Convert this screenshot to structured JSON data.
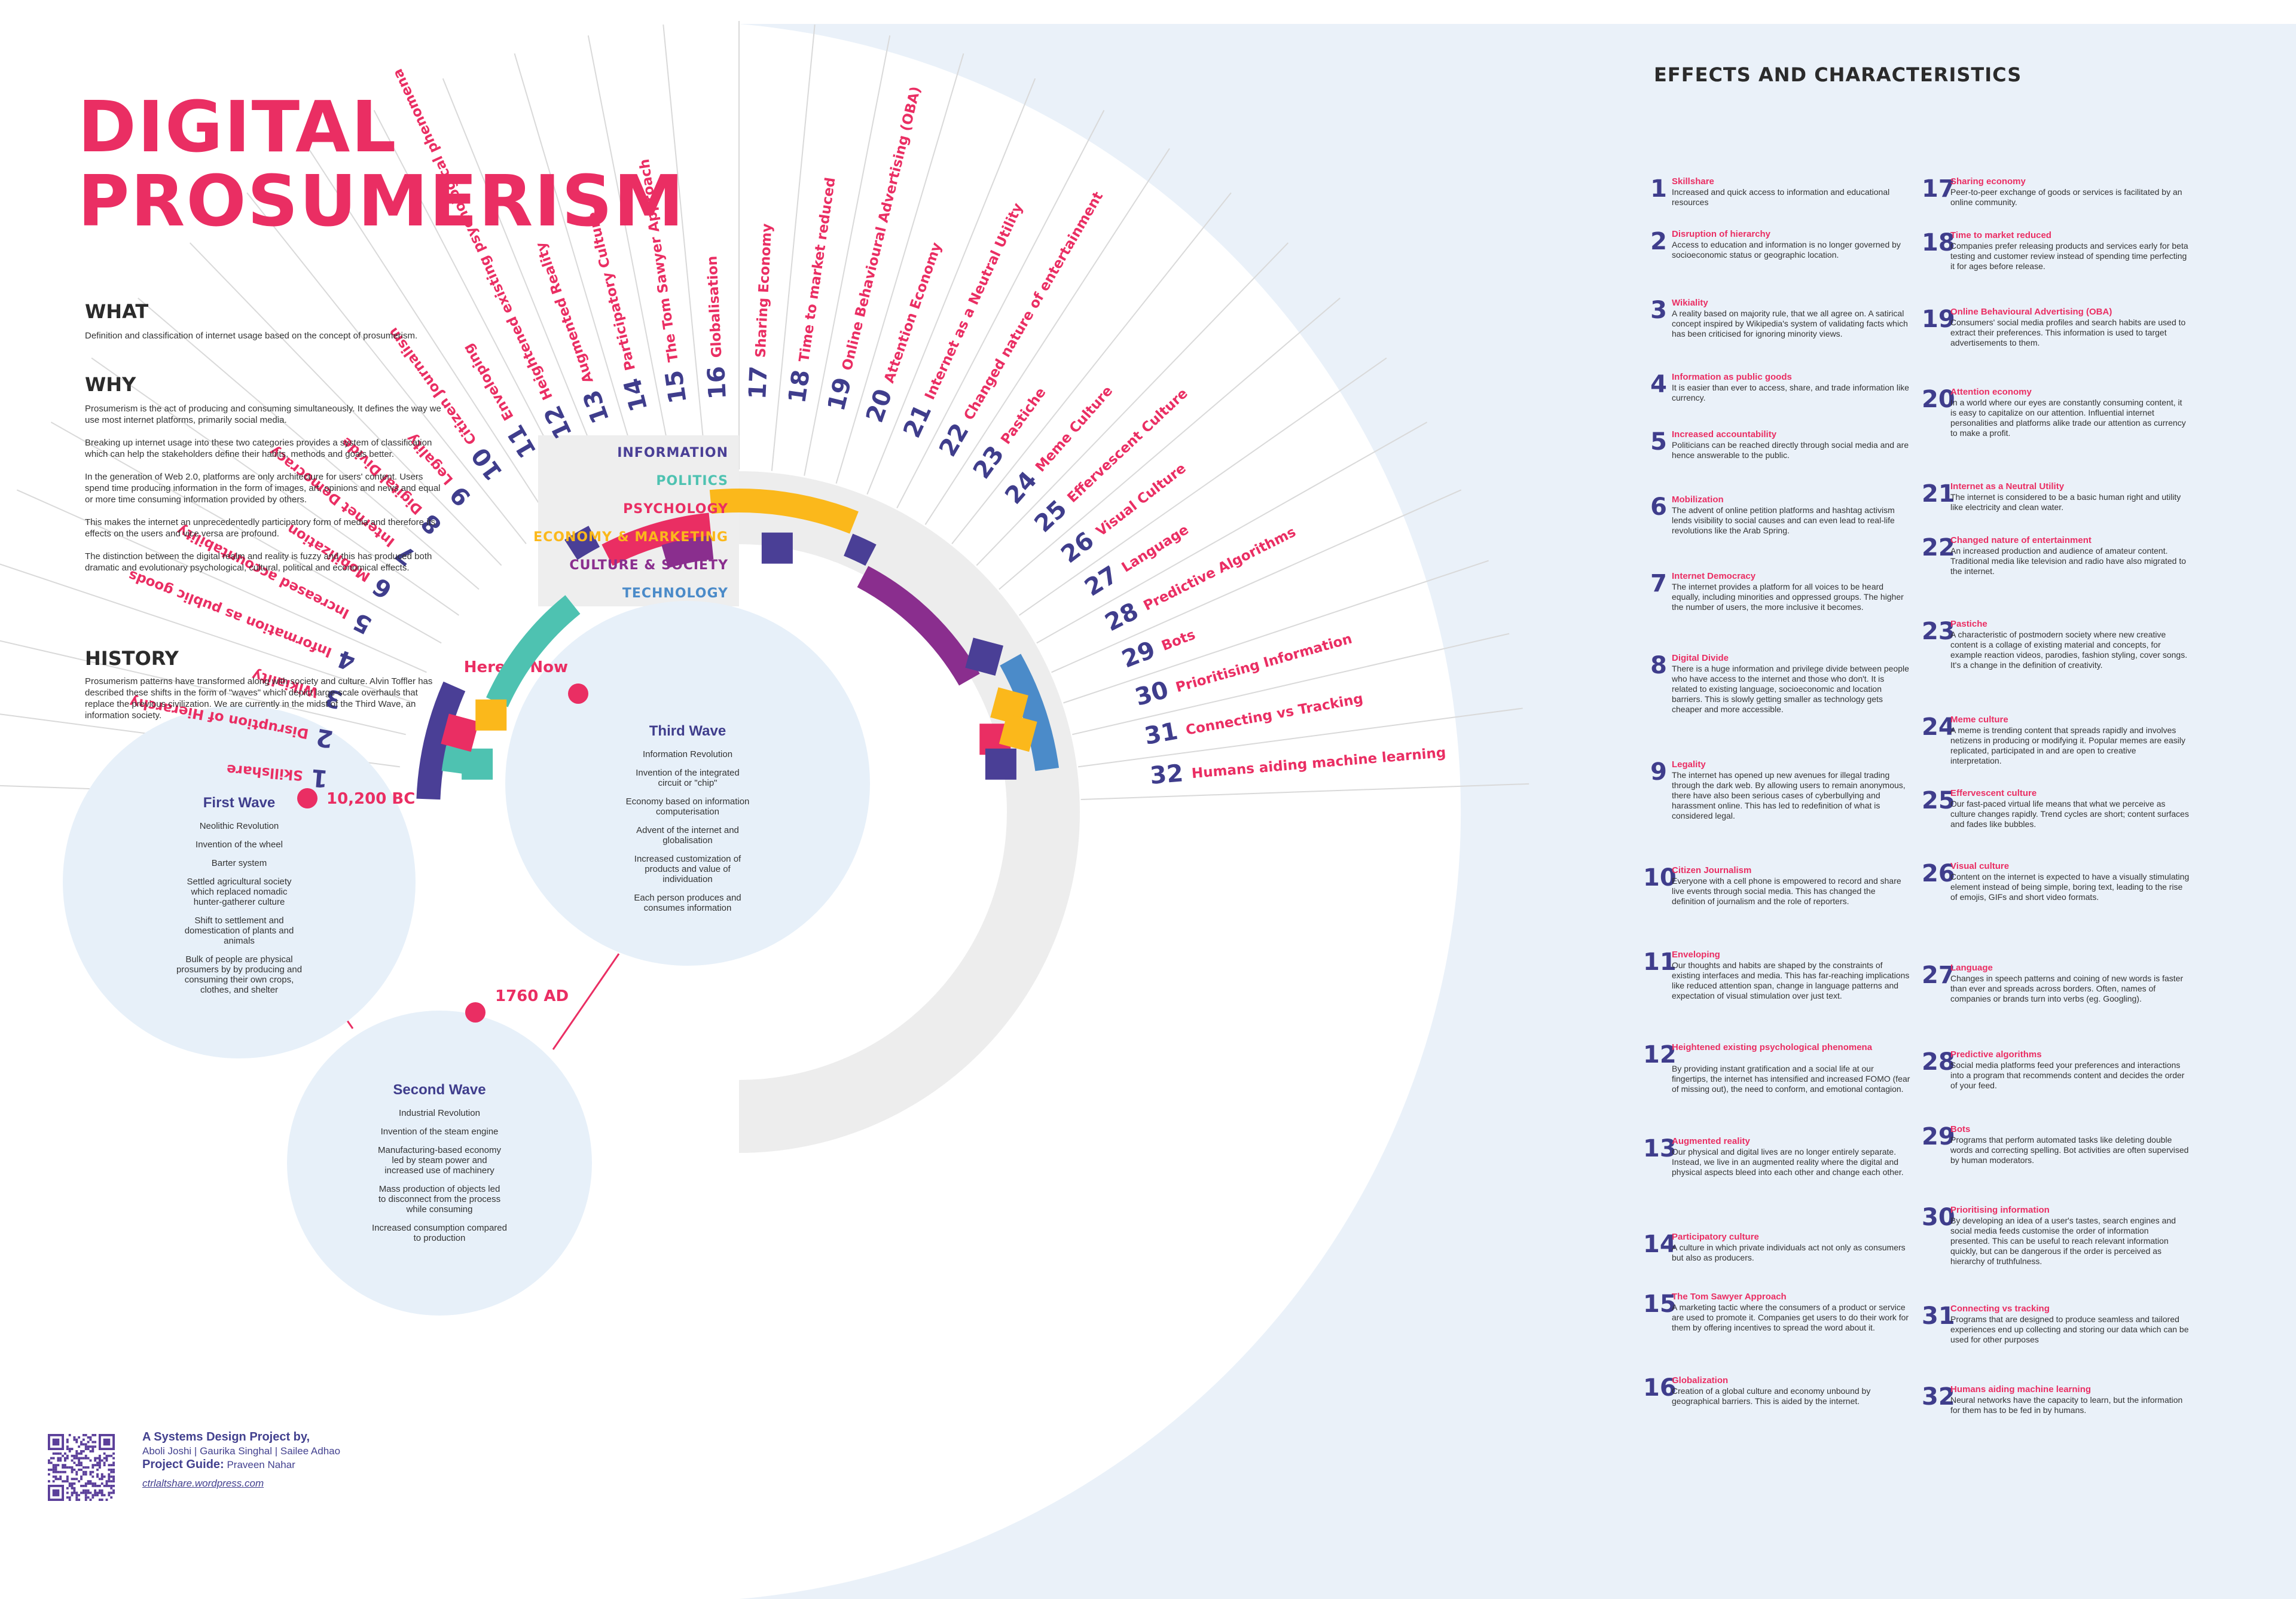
{
  "title": {
    "line1": "DIGITAL",
    "line2": "PROSUMERISM"
  },
  "what": {
    "heading": "WHAT",
    "text": "Definition and classification of internet usage based on the concept of prosumerism."
  },
  "why": {
    "heading": "WHY",
    "paragraphs": [
      "Prosumerism is the act of producing and consuming simultaneously. It defines the way we use most internet platforms, primarily social media.",
      "Breaking up internet usage into these two categories provides a system of classification which can help the stakeholders define their habits, methods and goals better.",
      "In the generation of Web 2.0, platforms are only architecture for users' content. Users spend time producing information in the form of images, art, opinions and news and equal or more time  consuming information provided by others.",
      "This makes the internet an unprecedentedly participatory form of media and therefore its effects on the users and vice versa are profound.",
      "The distinction between the digital realm and reality is fuzzy and this has produced both dramatic and evolutionary psychological, cultural, political and economical effects."
    ]
  },
  "history": {
    "heading": "HISTORY",
    "text": "Prosumerism patterns have transformed along with society and culture. Alvin Toffler has described these shifts in the form of \"waves\" which depict large-scale overhauls that replace the previous civilization. We are currently in the midst of the Third Wave, an information society."
  },
  "legend": [
    {
      "label": "INFORMATION",
      "color": "#4a3f96"
    },
    {
      "label": "POLITICS",
      "color": "#4ec2b1"
    },
    {
      "label": "PSYCHOLOGY",
      "color": "#ea2e63"
    },
    {
      "label": "ECONOMY & MARKETING",
      "color": "#fbb81b"
    },
    {
      "label": "CULTURE & SOCIETY",
      "color": "#8a2e8e"
    },
    {
      "label": "TECHNOLOGY",
      "color": "#4b8bc9"
    }
  ],
  "waves": [
    {
      "name": "First Wave",
      "date": "10,200 BC",
      "items": [
        "Neolithic Revolution",
        "Invention of the wheel",
        "Barter system",
        "Settled agricultural society which replaced nomadic hunter-gatherer culture",
        "Shift to settlement and domestication of plants and animals",
        "Bulk of people are physical prosumers by by producing and consuming their own crops, clothes, and shelter"
      ]
    },
    {
      "name": "Second Wave",
      "date": "1760 AD",
      "items": [
        "Industrial Revolution",
        "Invention of the steam engine",
        "Manufacturing-based economy led by steam power and increased use of machinery",
        "Mass production of objects led to disconnect from the process while consuming",
        "Increased consumption compared to production"
      ]
    },
    {
      "name": "Third Wave",
      "date": "Here & Now",
      "items": [
        "Information Revolution",
        "Invention of the integrated circuit or \"chip\"",
        "Economy based on information computerisation",
        "Advent of the internet and globalisation",
        "Increased customization of products and value of individuation",
        "Each person produces and consumes information"
      ]
    }
  ],
  "effects_heading": "EFFECTS AND CHARACTERISTICS",
  "effects": [
    {
      "num": "1",
      "name": "Skillshare",
      "wheel": "Skillshare",
      "desc": "Increased and quick access to information and educational resources"
    },
    {
      "num": "2",
      "name": "Disruption of hierarchy",
      "wheel": "Disruption of Hierarchy",
      "desc": "Access to education and information is no longer governed by socioeconomic status or geographic location."
    },
    {
      "num": "3",
      "name": "Wikiality",
      "wheel": "Wikiality",
      "desc": "A reality based on majority rule, that we all agree on. A satirical concept inspired by Wikipedia's system of validating facts which has been criticised for ignoring minority views."
    },
    {
      "num": "4",
      "name": "Information as public goods",
      "wheel": "Information as public goods",
      "desc": "It is easier than ever to access, share, and trade information like currency."
    },
    {
      "num": "5",
      "name": "Increased accountability",
      "wheel": "Increased accountability",
      "desc": "Politicians can be reached directly through social media and are hence answerable to the public."
    },
    {
      "num": "6",
      "name": "Mobilization",
      "wheel": "Mobilization",
      "desc": "The advent of online petition platforms and hashtag activism lends visibility to social causes and can even lead to real-life revolutions like the Arab Spring."
    },
    {
      "num": "7",
      "name": "Internet Democracy",
      "wheel": "Internet Democracy",
      "desc": "The internet provides a platform for all voices to be heard equally, including minorities and oppressed groups. The higher the number of users, the more inclusive it becomes."
    },
    {
      "num": "8",
      "name": "Digital Divide",
      "wheel": "Digital Divide",
      "desc": "There is a huge information and privilege divide between people who have access to the internet and those who don't. It is related to existing language, socioeconomic and location barriers. This is slowly getting smaller as technology gets cheaper and more accessible."
    },
    {
      "num": "9",
      "name": "Legality",
      "wheel": "Legality",
      "desc": "The internet has opened up new avenues for illegal trading through the dark web. By allowing users to remain anonymous, there have also been serious cases of cyberbullying and harassment online. This has led to redefinition of what is considered legal."
    },
    {
      "num": "10",
      "name": "Citizen Journalism",
      "wheel": "Citizen Journalism",
      "desc": "Everyone with a cell phone is empowered to record and share live events through social media. This has changed the definition of journalism and the role of reporters."
    },
    {
      "num": "11",
      "name": "Enveloping",
      "wheel": "Enveloping",
      "desc": "Our thoughts and habits are shaped by the constraints of existing interfaces and media. This has far-reaching implications like reduced attention span, change in language patterns and expectation of visual stimulation over just text."
    },
    {
      "num": "12",
      "name": "Heightened existing psychological phenomena",
      "wheel": "Heightened existing psychological phenomena",
      "desc": "By providing instant gratification and a social life at our fingertips, the internet has intensified and increased FOMO (fear of missing out), the need to conform, and emotional contagion."
    },
    {
      "num": "13",
      "name": "Augmented reality",
      "wheel": "Augmented Reality",
      "desc": "Our physical and digital lives are no longer entirely separate. Instead, we live in an augmented reality where the digital and physical aspects bleed into each other and change each other."
    },
    {
      "num": "14",
      "name": "Participatory culture",
      "wheel": "Participatory Culture",
      "desc": "A culture in which private individuals act not only as consumers but also as producers."
    },
    {
      "num": "15",
      "name": "The Tom Sawyer Approach",
      "wheel": "The Tom Sawyer Approach",
      "desc": "A marketing tactic where the consumers of a product or service are used to promote it. Companies get users to do their work for them by offering incentives to spread the word about it."
    },
    {
      "num": "16",
      "name": "Globalization",
      "wheel": "Globalisation",
      "desc": "Creation of a global culture and economy unbound by geographical barriers. This is aided by the internet."
    },
    {
      "num": "17",
      "name": "Sharing economy",
      "wheel": "Sharing Economy",
      "desc": "Peer-to-peer exchange of goods or services is facilitated by an online community."
    },
    {
      "num": "18",
      "name": "Time to market reduced",
      "wheel": "Time to market reduced",
      "desc": "Companies prefer releasing products and services early for beta testing and customer review instead of spending time perfecting it for ages before release."
    },
    {
      "num": "19",
      "name": "Online Behavioural Advertising (OBA)",
      "wheel": "Online Behavioural Advertising (OBA)",
      "desc": "Consumers' social media profiles and search habits are used to extract their preferences. This information is used to target advertisements to them."
    },
    {
      "num": "20",
      "name": "Attention economy",
      "wheel": "Attention Economy",
      "desc": "In a world where our eyes are constantly consuming content, it is easy to capitalize on our attention. Influential internet personalities and platforms alike trade our attention as currency to make a profit."
    },
    {
      "num": "21",
      "name": "Internet as a Neutral Utility",
      "wheel": "Internet as a Neutral Utility",
      "desc": "The internet is considered to be a basic human right and utility like electricity and clean water."
    },
    {
      "num": "22",
      "name": "Changed nature of entertainment",
      "wheel": "Changed nature of entertainment",
      "desc": "An increased production and audience of amateur content. Traditional media like television and radio have also migrated to the internet."
    },
    {
      "num": "23",
      "name": "Pastiche",
      "wheel": "Pastiche",
      "desc": "A characteristic of postmodern society where new creative content is a collage of existing material and concepts, for example reaction videos, parodies, fashion styling, cover songs. It's a change in the definition of creativity."
    },
    {
      "num": "24",
      "name": "Meme culture",
      "wheel": "Meme Culture",
      "desc": "A meme is trending content that spreads rapidly and involves netizens in producing or modifying it. Popular memes are easily replicated, participated in and are open to creative interpretation."
    },
    {
      "num": "25",
      "name": "Effervescent culture",
      "wheel": "Effervescent Culture",
      "desc": "Our fast-paced virtual life means that what we perceive as culture changes rapidly. Trend cycles are short; content surfaces and fades like bubbles."
    },
    {
      "num": "26",
      "name": "Visual culture",
      "wheel": "Visual Culture",
      "desc": "Content on the internet is expected to have a visually stimulating element instead of being simple, boring text, leading to the rise of emojis, GIFs and short video formats."
    },
    {
      "num": "27",
      "name": "Language",
      "wheel": "Language",
      "desc": "Changes in speech patterns and coining of new words is faster than ever and spreads across borders. Often, names of companies or brands turn into verbs (eg. Googling)."
    },
    {
      "num": "28",
      "name": "Predictive algorithms",
      "wheel": "Predictive Algorithms",
      "desc": "Social media platforms feed your preferences and interactions into a program that recommends content and decides the order of your feed."
    },
    {
      "num": "29",
      "name": "Bots",
      "wheel": "Bots",
      "desc": "Programs that perform automated tasks like deleting double words and correcting spelling. Bot activities are often supervised by human moderators."
    },
    {
      "num": "30",
      "name": "Prioritising information",
      "wheel": "Prioritising Information",
      "desc": "By developing an idea of a user's tastes, search engines and social media feeds customise the order of information presented. This can be useful to reach relevant information quickly, but can be dangerous if the order is perceived as hierarchy of truthfulness."
    },
    {
      "num": "31",
      "name": "Connecting vs tracking",
      "wheel": "Connecting vs Tracking",
      "desc": "Programs that are designed to produce seamless and tailored experiences end up collecting and storing our data which can be used for other purposes"
    },
    {
      "num": "32",
      "name": "Humans aiding machine learning",
      "wheel": "Humans aiding machine learning",
      "desc": "Neural networks have the capacity to learn, but the information for them has to be fed in by humans."
    }
  ],
  "arcs": [
    {
      "category": "INFORMATION",
      "from": 1,
      "to": 4
    },
    {
      "category": "POLITICS",
      "from": 2,
      "to": 2
    },
    {
      "category": "POLITICS",
      "from": 5,
      "to": 9
    },
    {
      "category": "INFORMATION",
      "from": 11,
      "to": 11
    },
    {
      "category": "PSYCHOLOGY",
      "from": 12,
      "to": 15
    },
    {
      "category": "CULTURE & SOCIETY",
      "from": 14,
      "to": 15
    },
    {
      "category": "ECONOMY & MARKETING",
      "from": 16,
      "to": 20
    },
    {
      "category": "INFORMATION",
      "from": 21,
      "to": 21
    },
    {
      "category": "CULTURE & SOCIETY",
      "from": 22,
      "to": 27
    },
    {
      "category": "TECHNOLOGY",
      "from": 28,
      "to": 31
    }
  ],
  "credits": {
    "title": "A Systems Design Project by,",
    "names": "Aboli Joshi | Gaurika Singhal | Sailee Adhao",
    "guide_label": "Project Guide:",
    "guide": "Praveen Nahar",
    "url": "ctrlaltshare.wordpress.com"
  }
}
